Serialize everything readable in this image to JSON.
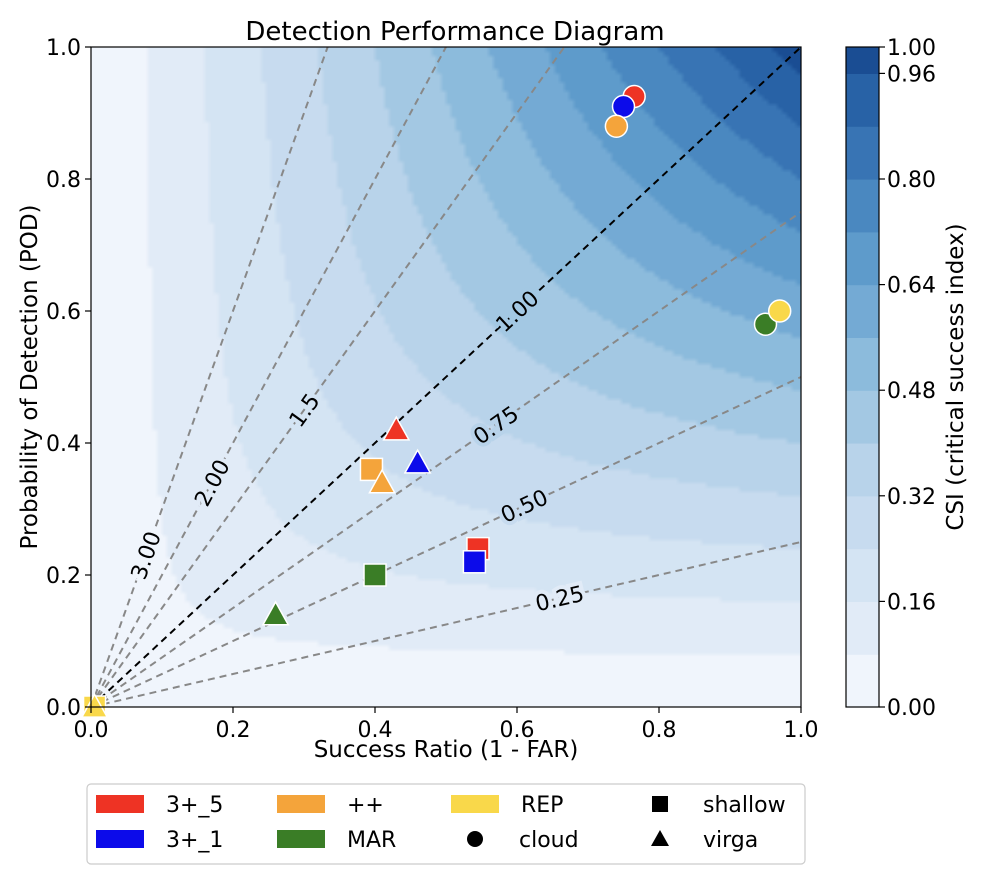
{
  "chart_data": {
    "type": "scatter",
    "title": "Detection Performance Diagram",
    "xlabel": "Success Ratio (1 - FAR)",
    "ylabel": "Probability of Detection (POD)",
    "xlim": [
      0.0,
      1.0
    ],
    "ylim": [
      0.0,
      1.0
    ],
    "xticks": [
      "0.0",
      "0.2",
      "0.4",
      "0.6",
      "0.8",
      "1.0"
    ],
    "yticks": [
      "0.0",
      "0.2",
      "0.4",
      "0.6",
      "0.8",
      "1.0"
    ],
    "background": "filled contours of CSI",
    "colorbar": {
      "label": "CSI (critical success index)",
      "levels": [
        0.0,
        0.08,
        0.16,
        0.24,
        0.32,
        0.4,
        0.48,
        0.56,
        0.64,
        0.72,
        0.8,
        0.88,
        0.96,
        1.0
      ],
      "ticks": [
        "0.00",
        "0.16",
        "0.32",
        "0.48",
        "0.64",
        "0.80",
        "0.96",
        "1.00"
      ],
      "colors": [
        "#f0f5fc",
        "#e1ebf7",
        "#d4e4f3",
        "#c7dbef",
        "#b8d3ea",
        "#a3c8e3",
        "#8cbbdc",
        "#74aad4",
        "#5e9bcb",
        "#4a88c0",
        "#3874b4",
        "#2862a6",
        "#1a4d93",
        "#0f3a7c"
      ]
    },
    "bias_lines": [
      {
        "bias": 3.0,
        "label": "3.00"
      },
      {
        "bias": 2.0,
        "label": "2.00"
      },
      {
        "bias": 1.5,
        "label": "1.5"
      },
      {
        "bias": 1.0,
        "label": "1.00"
      },
      {
        "bias": 0.75,
        "label": "0.75"
      },
      {
        "bias": 0.5,
        "label": "0.50"
      },
      {
        "bias": 0.25,
        "label": "0.25"
      }
    ],
    "series": [
      {
        "name": "3+_5",
        "color": "#ee3324",
        "points": [
          {
            "x": 0.545,
            "y": 0.24,
            "marker": "shallow"
          },
          {
            "x": 0.765,
            "y": 0.925,
            "marker": "cloud"
          },
          {
            "x": 0.43,
            "y": 0.42,
            "marker": "virga"
          }
        ]
      },
      {
        "name": "3+_1",
        "color": "#0c0bea",
        "points": [
          {
            "x": 0.54,
            "y": 0.22,
            "marker": "shallow"
          },
          {
            "x": 0.75,
            "y": 0.91,
            "marker": "cloud"
          },
          {
            "x": 0.46,
            "y": 0.37,
            "marker": "virga"
          }
        ]
      },
      {
        "name": "++",
        "color": "#f4a43b",
        "points": [
          {
            "x": 0.395,
            "y": 0.36,
            "marker": "shallow"
          },
          {
            "x": 0.74,
            "y": 0.88,
            "marker": "cloud"
          },
          {
            "x": 0.41,
            "y": 0.34,
            "marker": "virga"
          }
        ]
      },
      {
        "name": "MAR",
        "color": "#3a7d26",
        "points": [
          {
            "x": 0.4,
            "y": 0.2,
            "marker": "shallow"
          },
          {
            "x": 0.95,
            "y": 0.58,
            "marker": "cloud"
          },
          {
            "x": 0.26,
            "y": 0.14,
            "marker": "virga"
          }
        ]
      },
      {
        "name": "REP",
        "color": "#f9d84a",
        "points": [
          {
            "x": 0.005,
            "y": 0.0,
            "marker": "shallow"
          },
          {
            "x": 0.97,
            "y": 0.6,
            "marker": "cloud"
          },
          {
            "x": 0.005,
            "y": 0.0,
            "marker": "virga"
          }
        ]
      }
    ],
    "legend": {
      "placement": "bottom-outside",
      "marker_entries": [
        {
          "label": "shallow",
          "shape": "square"
        },
        {
          "label": "cloud",
          "shape": "circle"
        },
        {
          "label": "virga",
          "shape": "triangle"
        }
      ]
    }
  }
}
